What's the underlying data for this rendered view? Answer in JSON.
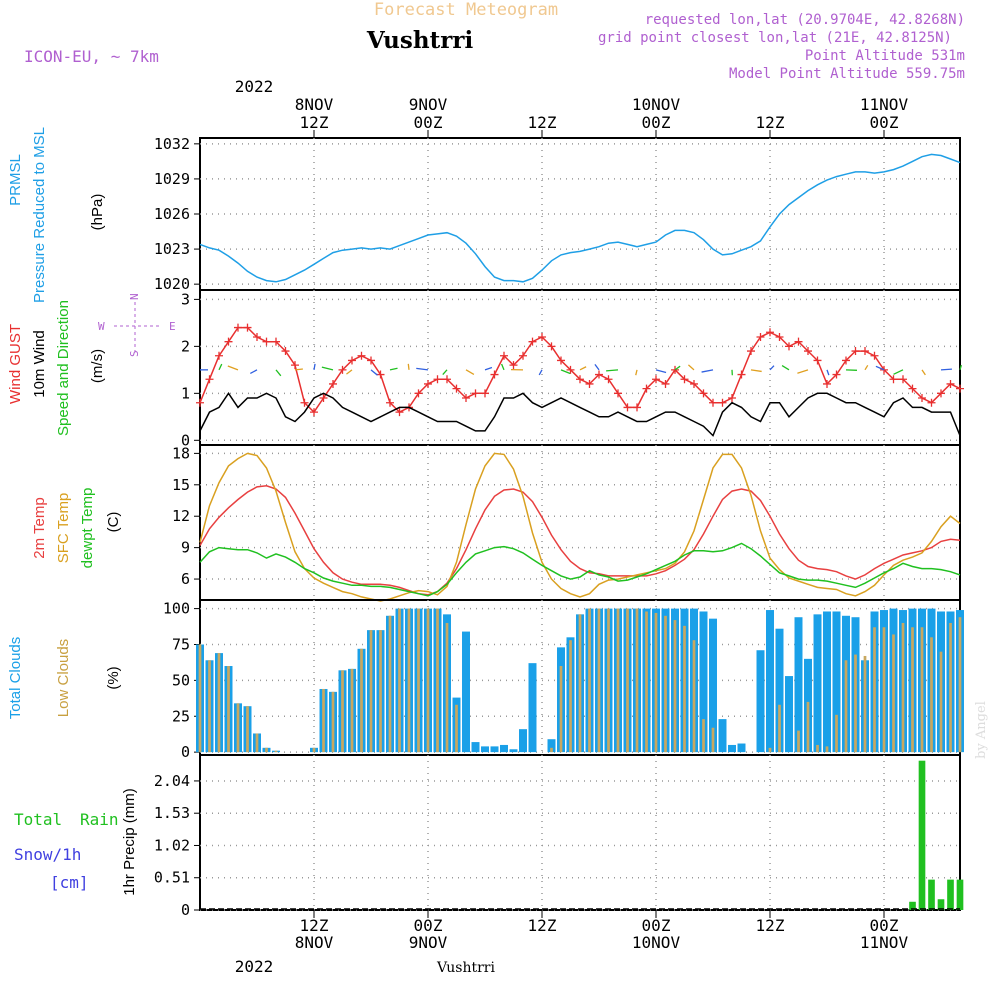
{
  "header": {
    "product": "Forecast Meteogram",
    "location": "Vushtrri",
    "model": "ICON-EU, ~ 7km",
    "requested": "requested lon,lat (20.9704E, 42.8268N)",
    "gridpoint": "grid point closest lon,lat (21E, 42.8125N)",
    "point_alt": "Point Altitude 531m",
    "model_alt": "Model Point Altitude 559.75m",
    "footer_location": "Vushtrri",
    "watermark": "by Angel"
  },
  "time_axis": {
    "top_year": "2022",
    "bottom_year": "2022",
    "ticks": [
      {
        "hour": 12,
        "top_day": "8NOV",
        "top_time": "12Z",
        "bottom_time": "12Z",
        "bottom_day": "8NOV"
      },
      {
        "hour": 24,
        "top_day": "9NOV",
        "top_time": "00Z",
        "bottom_time": "00Z",
        "bottom_day": "9NOV"
      },
      {
        "hour": 36,
        "top_day": "",
        "top_time": "12Z",
        "bottom_time": "12Z",
        "bottom_day": ""
      },
      {
        "hour": 48,
        "top_day": "10NOV",
        "top_time": "00Z",
        "bottom_time": "00Z",
        "bottom_day": "10NOV"
      },
      {
        "hour": 60,
        "top_day": "",
        "top_time": "12Z",
        "bottom_time": "12Z",
        "bottom_day": ""
      },
      {
        "hour": 72,
        "top_day": "11NOV",
        "top_time": "00Z",
        "bottom_time": "00Z",
        "bottom_day": "11NOV"
      }
    ]
  },
  "panel_labels": {
    "pressure": {
      "title1": "PRMSL",
      "title2": "Pressure Reduced to MSL",
      "unit": "(hPa)"
    },
    "wind": {
      "gust": "Wind GUST",
      "wind10": "10m Wind",
      "speed": "Speed and Direction",
      "unit": "(m/s)",
      "compass_n": "N",
      "compass_s": "S",
      "compass_e": "E",
      "compass_w": "W"
    },
    "temp": {
      "t2m": "2m Temp",
      "sfc": "SFC Temp",
      "dew": "dewpt Temp",
      "unit": "(C)"
    },
    "clouds": {
      "total": "Total Clouds",
      "low": "Low Clouds",
      "unit": "(%)"
    },
    "precip": {
      "total": "Total",
      "rain": "Rain",
      "snow": "Snow/1h",
      "snow_unit": "[cm]",
      "axis": "1hr Precip (mm)"
    }
  },
  "colors": {
    "pressure": "#1f9fe6",
    "gust": "#e83030",
    "wind": "#000000",
    "t2m": "#e84040",
    "sfc": "#d9a020",
    "dew": "#20c020",
    "total_clouds": "#1aa0e8",
    "low_clouds": "#c8a860",
    "rain": "#20c020",
    "snow": "#4040e0",
    "header_purple": "#b060d0",
    "product_title": "#f0c890"
  },
  "chart_data": [
    {
      "type": "line",
      "name": "pressure",
      "x_start_hour": 0,
      "x_end_hour": 80,
      "ylim": [
        1019.5,
        1032.5
      ],
      "yticks": [
        1020,
        1023,
        1026,
        1029,
        1032
      ],
      "grid": true,
      "series": [
        {
          "values": [
            1023.4,
            1023.1,
            1022.9,
            1022.4,
            1021.8,
            1021.1,
            1020.6,
            1020.3,
            1020.2,
            1020.4,
            1020.8,
            1021.2,
            1021.7,
            1022.2,
            1022.7,
            1022.9,
            1023.0,
            1023.1,
            1023.0,
            1023.1,
            1023.0,
            1023.3,
            1023.6,
            1023.9,
            1024.2,
            1024.3,
            1024.4,
            1024.1,
            1023.5,
            1022.6,
            1021.5,
            1020.6,
            1020.3,
            1020.3,
            1020.2,
            1020.5,
            1021.2,
            1022.0,
            1022.5,
            1022.7,
            1022.8,
            1023.0,
            1023.2,
            1023.5,
            1023.6,
            1023.4,
            1023.2,
            1023.4,
            1023.6,
            1024.2,
            1024.6,
            1024.6,
            1024.4,
            1023.8,
            1023.0,
            1022.5,
            1022.6,
            1022.9,
            1023.2,
            1023.7,
            1024.9,
            1026.0,
            1026.8,
            1027.4,
            1028.0,
            1028.5,
            1028.9,
            1029.2,
            1029.4,
            1029.6,
            1029.6,
            1029.5,
            1029.6,
            1029.8,
            1030.1,
            1030.5,
            1030.9,
            1031.1,
            1031.0,
            1030.7,
            1030.4
          ]
        }
      ]
    },
    {
      "type": "line",
      "name": "wind",
      "x_start_hour": 0,
      "x_end_hour": 80,
      "ylim": [
        -0.1,
        3.2
      ],
      "yticks": [
        0,
        1,
        2,
        3
      ],
      "grid": true,
      "series": [
        {
          "name": "Wind GUST",
          "values": [
            0.8,
            1.3,
            1.8,
            2.1,
            2.4,
            2.4,
            2.2,
            2.1,
            2.1,
            1.9,
            1.6,
            0.8,
            0.6,
            0.9,
            1.2,
            1.5,
            1.7,
            1.8,
            1.7,
            1.4,
            0.8,
            0.6,
            0.7,
            1.0,
            1.2,
            1.3,
            1.3,
            1.1,
            0.9,
            1.0,
            1.0,
            1.4,
            1.8,
            1.6,
            1.8,
            2.1,
            2.2,
            2.0,
            1.7,
            1.5,
            1.3,
            1.2,
            1.4,
            1.3,
            1.0,
            0.7,
            0.7,
            1.1,
            1.3,
            1.2,
            1.5,
            1.3,
            1.2,
            1.0,
            0.8,
            0.8,
            0.9,
            1.4,
            1.9,
            2.2,
            2.3,
            2.2,
            2.0,
            2.1,
            1.9,
            1.7,
            1.2,
            1.4,
            1.7,
            1.9,
            1.9,
            1.8,
            1.5,
            1.3,
            1.3,
            1.1,
            0.9,
            0.8,
            1.0,
            1.2,
            1.1
          ]
        },
        {
          "name": "10m Wind",
          "values": [
            0.2,
            0.6,
            0.7,
            1.0,
            0.7,
            0.9,
            0.9,
            1.0,
            0.9,
            0.5,
            0.4,
            0.6,
            0.9,
            1.0,
            0.9,
            0.7,
            0.6,
            0.5,
            0.4,
            0.5,
            0.6,
            0.7,
            0.7,
            0.6,
            0.5,
            0.4,
            0.4,
            0.4,
            0.3,
            0.2,
            0.2,
            0.5,
            0.9,
            0.9,
            1.0,
            0.8,
            0.7,
            0.8,
            0.9,
            0.8,
            0.7,
            0.6,
            0.5,
            0.5,
            0.6,
            0.5,
            0.4,
            0.4,
            0.5,
            0.6,
            0.6,
            0.5,
            0.4,
            0.3,
            0.1,
            0.6,
            0.8,
            0.7,
            0.5,
            0.4,
            0.8,
            0.8,
            0.5,
            0.7,
            0.9,
            1.0,
            1.0,
            0.9,
            0.8,
            0.8,
            0.7,
            0.6,
            0.5,
            0.8,
            0.9,
            0.7,
            0.7,
            0.6,
            0.6,
            0.6,
            0.1
          ]
        }
      ]
    },
    {
      "type": "line",
      "name": "temperature",
      "x_start_hour": 0,
      "x_end_hour": 80,
      "ylim": [
        4.0,
        18.8
      ],
      "yticks": [
        6,
        9,
        12,
        15,
        18
      ],
      "grid": true,
      "series": [
        {
          "name": "2m Temp",
          "values": [
            9.2,
            10.8,
            11.9,
            12.8,
            13.6,
            14.3,
            14.8,
            14.9,
            14.6,
            13.8,
            12.3,
            10.6,
            8.9,
            7.6,
            6.6,
            6.0,
            5.7,
            5.5,
            5.5,
            5.5,
            5.4,
            5.2,
            4.9,
            4.6,
            4.5,
            4.8,
            5.6,
            7.0,
            8.8,
            10.8,
            12.6,
            13.9,
            14.5,
            14.6,
            14.3,
            13.4,
            11.9,
            10.2,
            8.8,
            7.7,
            7.0,
            6.6,
            6.5,
            6.3,
            6.3,
            6.3,
            6.3,
            6.3,
            6.5,
            6.8,
            7.3,
            7.9,
            8.8,
            10.3,
            12.0,
            13.6,
            14.4,
            14.6,
            14.4,
            13.5,
            12.0,
            10.3,
            8.9,
            7.8,
            7.2,
            7.0,
            6.9,
            6.7,
            6.3,
            6.0,
            6.4,
            7.0,
            7.5,
            7.9,
            8.3,
            8.5,
            8.7,
            9.0,
            9.6,
            9.8,
            9.7
          ]
        },
        {
          "name": "SFC Temp",
          "values": [
            9.5,
            13.0,
            15.2,
            16.8,
            17.5,
            18.0,
            17.8,
            16.6,
            14.4,
            11.4,
            8.6,
            7.0,
            6.1,
            5.6,
            5.2,
            4.8,
            4.6,
            4.3,
            4.1,
            3.9,
            4.1,
            4.4,
            4.7,
            4.9,
            4.8,
            4.5,
            5.3,
            7.6,
            11.2,
            14.6,
            16.8,
            18.0,
            17.9,
            16.5,
            13.9,
            10.4,
            7.6,
            6.0,
            5.1,
            4.6,
            4.3,
            4.6,
            5.5,
            5.9,
            6.0,
            6.2,
            6.4,
            6.6,
            6.8,
            7.0,
            7.5,
            8.6,
            10.6,
            13.6,
            16.6,
            17.9,
            17.9,
            16.6,
            14.0,
            10.6,
            8.0,
            6.9,
            6.1,
            5.8,
            5.5,
            5.2,
            5.1,
            5.0,
            4.6,
            4.4,
            4.8,
            5.4,
            6.4,
            7.3,
            7.8,
            8.1,
            8.5,
            9.6,
            11.0,
            12.0,
            11.3
          ]
        },
        {
          "name": "dewpt Temp",
          "values": [
            7.6,
            8.6,
            9.0,
            8.9,
            8.8,
            8.8,
            8.5,
            8.0,
            8.4,
            8.1,
            7.6,
            7.0,
            6.6,
            6.1,
            5.8,
            5.6,
            5.4,
            5.4,
            5.3,
            5.3,
            5.2,
            5.0,
            4.8,
            4.6,
            4.4,
            4.8,
            5.5,
            6.6,
            7.6,
            8.4,
            8.7,
            9.0,
            9.1,
            8.9,
            8.5,
            7.9,
            7.3,
            6.8,
            6.3,
            6.0,
            6.2,
            6.8,
            6.4,
            6.2,
            5.8,
            5.9,
            6.2,
            6.5,
            6.9,
            7.3,
            7.7,
            8.3,
            8.7,
            8.7,
            8.6,
            8.7,
            9.0,
            9.4,
            8.9,
            8.2,
            7.4,
            6.6,
            6.3,
            6.0,
            5.9,
            5.9,
            5.8,
            5.6,
            5.4,
            5.2,
            5.6,
            6.1,
            6.6,
            7.0,
            7.5,
            7.2,
            7.0,
            7.0,
            6.9,
            6.7,
            6.4
          ]
        }
      ]
    },
    {
      "type": "bar",
      "name": "clouds",
      "x_start_hour": 0,
      "x_end_hour": 80,
      "ylim": [
        -2,
        106
      ],
      "yticks": [
        0,
        25,
        50,
        75,
        100
      ],
      "grid": true,
      "series": [
        {
          "name": "Total Clouds",
          "values": [
            75,
            64,
            69,
            60,
            34,
            32,
            13,
            3,
            1,
            0,
            0,
            0,
            3,
            44,
            42,
            57,
            58,
            72,
            85,
            85,
            95,
            100,
            100,
            100,
            100,
            100,
            96,
            38,
            84,
            7,
            4,
            4,
            5,
            2,
            16,
            62,
            0,
            9,
            73,
            80,
            96,
            100,
            100,
            100,
            100,
            100,
            100,
            100,
            100,
            100,
            100,
            100,
            100,
            98,
            93,
            23,
            5,
            6,
            0,
            71,
            99,
            86,
            53,
            94,
            65,
            96,
            98,
            98,
            95,
            94,
            64,
            98,
            99,
            100,
            99,
            100,
            100,
            100,
            98,
            98,
            99
          ]
        },
        {
          "name": "Low Clouds",
          "values": [
            75,
            64,
            69,
            60,
            34,
            32,
            13,
            3,
            1,
            0,
            0,
            0,
            3,
            44,
            42,
            57,
            58,
            72,
            85,
            85,
            95,
            100,
            100,
            100,
            100,
            100,
            90,
            33,
            0,
            0,
            0,
            0,
            0,
            0,
            0,
            0,
            0,
            3,
            60,
            78,
            96,
            100,
            100,
            100,
            100,
            100,
            100,
            98,
            97,
            95,
            92,
            88,
            78,
            23,
            17,
            0,
            0,
            0,
            0,
            0,
            3,
            33,
            0,
            15,
            35,
            5,
            4,
            26,
            64,
            68,
            67,
            87,
            87,
            82,
            90,
            87,
            87,
            80,
            70,
            90,
            94
          ]
        }
      ]
    },
    {
      "type": "bar",
      "name": "precip",
      "x_start_hour": 0,
      "x_end_hour": 80,
      "ylim": [
        0,
        2.45
      ],
      "yticks": [
        0,
        0.51,
        1.02,
        1.53,
        2.04
      ],
      "grid": true,
      "series": [
        {
          "name": "Total Rain",
          "hours": [
            75,
            76,
            77,
            78,
            79,
            80
          ],
          "values": [
            0.13,
            2.36,
            0.48,
            0.17,
            0.48,
            0.48
          ]
        }
      ]
    }
  ]
}
